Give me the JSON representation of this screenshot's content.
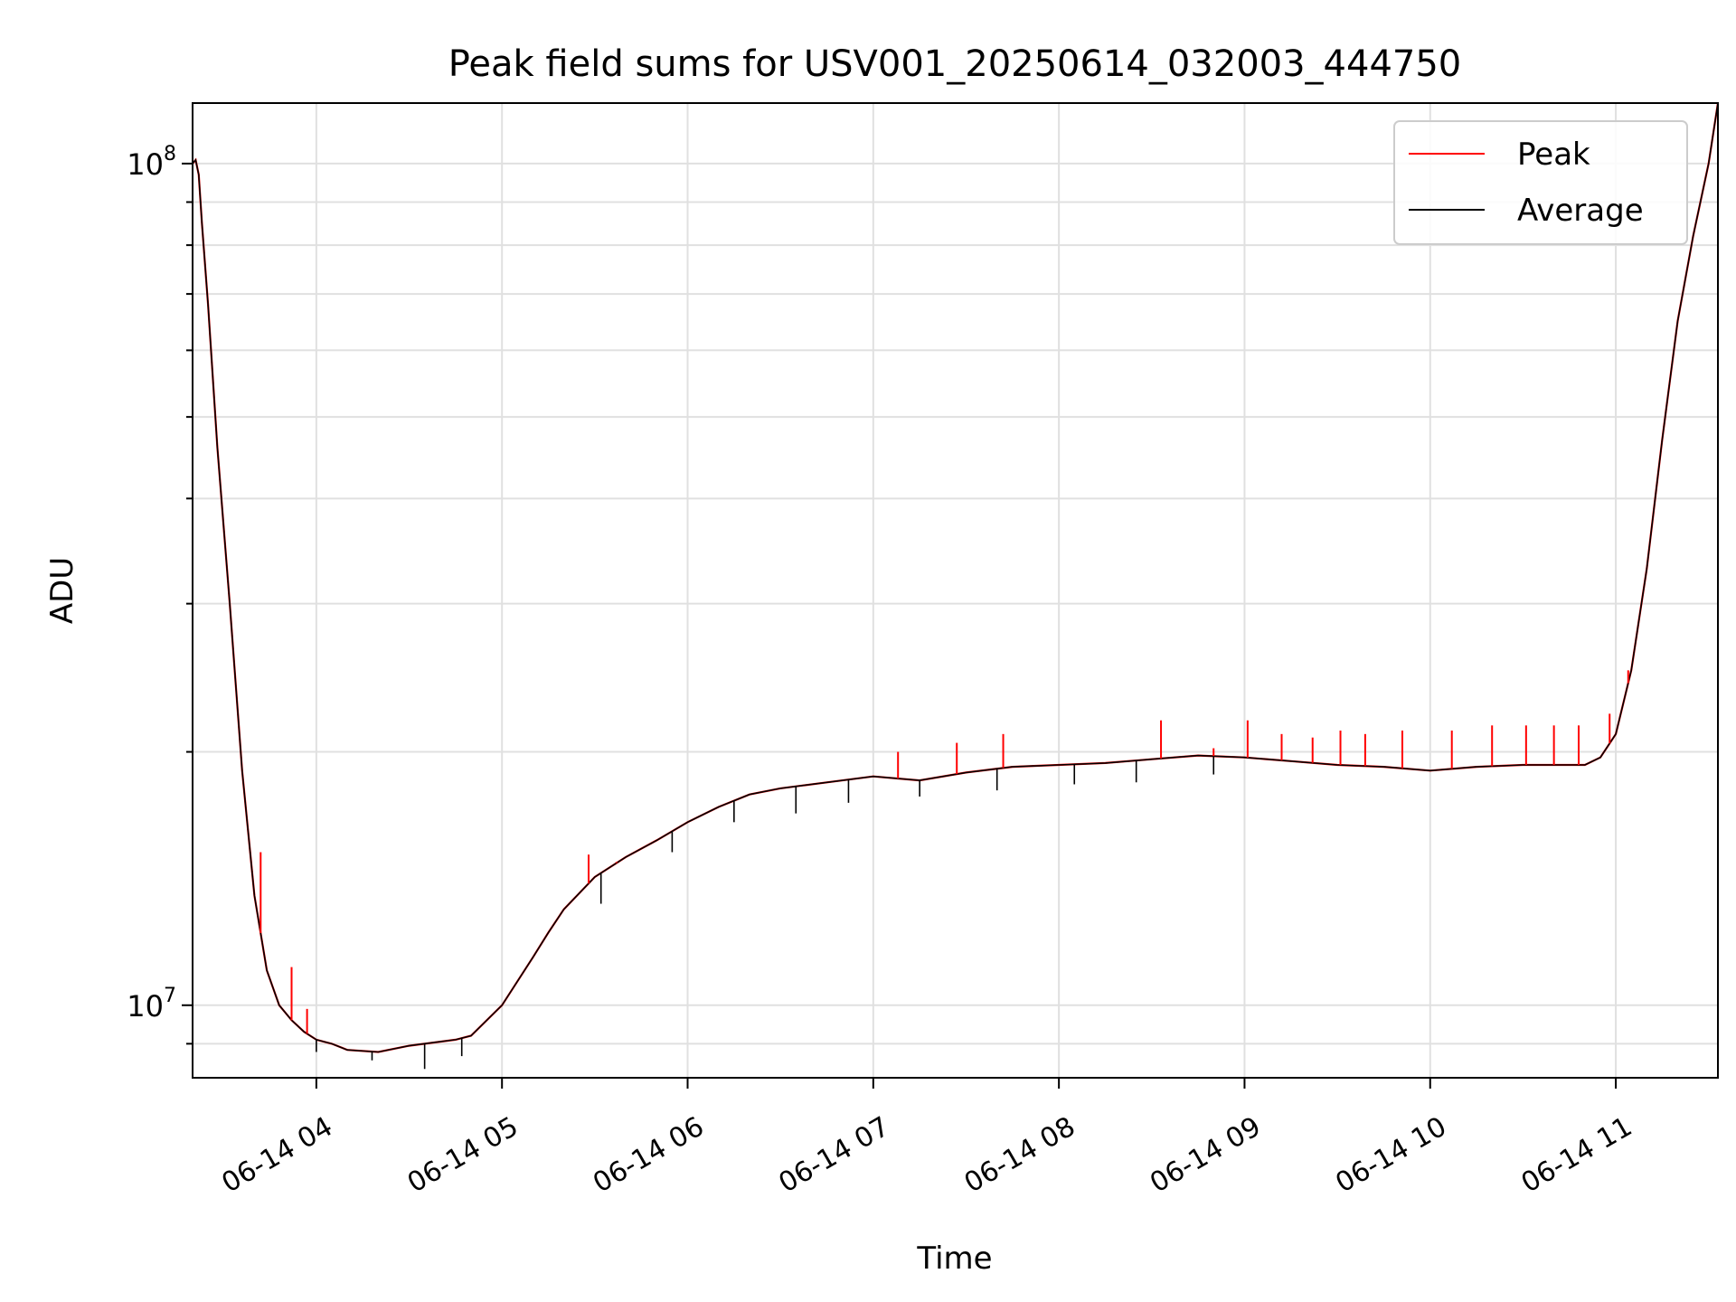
{
  "chart_data": {
    "type": "line",
    "title": "Peak field sums for USV001_20250614_032003_444750",
    "xlabel": "Time",
    "ylabel": "ADU",
    "x_axis": {
      "type": "time",
      "range": [
        "2025-06-14 03:20",
        "2025-06-14 11:33"
      ],
      "ticks": [
        {
          "t": "2025-06-14 04:00",
          "label": "06-14 04"
        },
        {
          "t": "2025-06-14 05:00",
          "label": "06-14 05"
        },
        {
          "t": "2025-06-14 06:00",
          "label": "06-14 06"
        },
        {
          "t": "2025-06-14 07:00",
          "label": "06-14 07"
        },
        {
          "t": "2025-06-14 08:00",
          "label": "06-14 08"
        },
        {
          "t": "2025-06-14 09:00",
          "label": "06-14 09"
        },
        {
          "t": "2025-06-14 10:00",
          "label": "06-14 10"
        },
        {
          "t": "2025-06-14 11:00",
          "label": "06-14 11"
        }
      ]
    },
    "y_axis": {
      "scale": "log",
      "range": [
        8200000,
        118000000
      ],
      "major_ticks": [
        {
          "value": 10000000,
          "base": "10",
          "exp": "7"
        },
        {
          "value": 100000000,
          "base": "10",
          "exp": "8"
        }
      ]
    },
    "grid": true,
    "legend": {
      "position": "top-right",
      "entries": [
        "Peak",
        "Average"
      ]
    },
    "series": [
      {
        "name": "Peak",
        "color": "#ff0000",
        "x": [
          "2025-06-14 03:20",
          "2025-06-14 03:21",
          "2025-06-14 03:22",
          "2025-06-14 03:23",
          "2025-06-14 03:25",
          "2025-06-14 03:28",
          "2025-06-14 03:32",
          "2025-06-14 03:36",
          "2025-06-14 03:40",
          "2025-06-14 03:44",
          "2025-06-14 03:48",
          "2025-06-14 03:52",
          "2025-06-14 03:56",
          "2025-06-14 04:00",
          "2025-06-14 04:05",
          "2025-06-14 04:10",
          "2025-06-14 04:20",
          "2025-06-14 04:30",
          "2025-06-14 04:40",
          "2025-06-14 04:45",
          "2025-06-14 04:50",
          "2025-06-14 05:00",
          "2025-06-14 05:10",
          "2025-06-14 05:15",
          "2025-06-14 05:20",
          "2025-06-14 05:30",
          "2025-06-14 05:40",
          "2025-06-14 05:50",
          "2025-06-14 06:00",
          "2025-06-14 06:10",
          "2025-06-14 06:20",
          "2025-06-14 06:30",
          "2025-06-14 06:45",
          "2025-06-14 07:00",
          "2025-06-14 07:15",
          "2025-06-14 07:30",
          "2025-06-14 07:45",
          "2025-06-14 08:00",
          "2025-06-14 08:15",
          "2025-06-14 08:30",
          "2025-06-14 08:45",
          "2025-06-14 09:00",
          "2025-06-14 09:15",
          "2025-06-14 09:30",
          "2025-06-14 09:45",
          "2025-06-14 10:00",
          "2025-06-14 10:15",
          "2025-06-14 10:30",
          "2025-06-14 10:45",
          "2025-06-14 10:50",
          "2025-06-14 10:55",
          "2025-06-14 11:00",
          "2025-06-14 11:05",
          "2025-06-14 11:10",
          "2025-06-14 11:15",
          "2025-06-14 11:20",
          "2025-06-14 11:25",
          "2025-06-14 11:30",
          "2025-06-14 11:33"
        ],
        "y": [
          100000000,
          101000000,
          97000000,
          85000000,
          68000000,
          46000000,
          30000000,
          19000000,
          13500000,
          11000000,
          10000000,
          9600000,
          9300000,
          9100000,
          9000000,
          8850000,
          8800000,
          8950000,
          9050000,
          9100000,
          9200000,
          10000000,
          11400000,
          12200000,
          13000000,
          14200000,
          15000000,
          15700000,
          16500000,
          17200000,
          17800000,
          18100000,
          18400000,
          18700000,
          18500000,
          18900000,
          19200000,
          19300000,
          19400000,
          19600000,
          19800000,
          19700000,
          19500000,
          19300000,
          19200000,
          19000000,
          19200000,
          19300000,
          19300000,
          19300000,
          19700000,
          21000000,
          25000000,
          33000000,
          47000000,
          65000000,
          82000000,
          100000000,
          118000000
        ],
        "spikes": [
          {
            "t": "2025-06-14 03:42",
            "value": 15200000
          },
          {
            "t": "2025-06-14 03:52",
            "value": 11100000
          },
          {
            "t": "2025-06-14 03:57",
            "value": 9900000
          },
          {
            "t": "2025-06-14 05:28",
            "value": 15100000
          },
          {
            "t": "2025-06-14 05:37",
            "value": 14800000
          },
          {
            "t": "2025-06-14 07:08",
            "value": 20000000
          },
          {
            "t": "2025-06-14 07:27",
            "value": 20500000
          },
          {
            "t": "2025-06-14 07:42",
            "value": 21000000
          },
          {
            "t": "2025-06-14 08:33",
            "value": 21800000
          },
          {
            "t": "2025-06-14 08:50",
            "value": 20200000
          },
          {
            "t": "2025-06-14 09:01",
            "value": 21800000
          },
          {
            "t": "2025-06-14 09:12",
            "value": 21000000
          },
          {
            "t": "2025-06-14 09:22",
            "value": 20800000
          },
          {
            "t": "2025-06-14 09:31",
            "value": 21200000
          },
          {
            "t": "2025-06-14 09:39",
            "value": 21000000
          },
          {
            "t": "2025-06-14 09:51",
            "value": 21200000
          },
          {
            "t": "2025-06-14 10:07",
            "value": 21200000
          },
          {
            "t": "2025-06-14 10:20",
            "value": 21500000
          },
          {
            "t": "2025-06-14 10:31",
            "value": 21500000
          },
          {
            "t": "2025-06-14 10:40",
            "value": 21500000
          },
          {
            "t": "2025-06-14 10:48",
            "value": 21500000
          },
          {
            "t": "2025-06-14 10:58",
            "value": 22200000
          },
          {
            "t": "2025-06-14 11:04",
            "value": 25000000
          }
        ]
      },
      {
        "name": "Average",
        "color": "#000000",
        "x": [
          "2025-06-14 03:20",
          "2025-06-14 03:21",
          "2025-06-14 03:22",
          "2025-06-14 03:23",
          "2025-06-14 03:25",
          "2025-06-14 03:28",
          "2025-06-14 03:32",
          "2025-06-14 03:36",
          "2025-06-14 03:40",
          "2025-06-14 03:44",
          "2025-06-14 03:48",
          "2025-06-14 03:52",
          "2025-06-14 03:56",
          "2025-06-14 04:00",
          "2025-06-14 04:05",
          "2025-06-14 04:10",
          "2025-06-14 04:20",
          "2025-06-14 04:30",
          "2025-06-14 04:40",
          "2025-06-14 04:45",
          "2025-06-14 04:50",
          "2025-06-14 05:00",
          "2025-06-14 05:10",
          "2025-06-14 05:15",
          "2025-06-14 05:20",
          "2025-06-14 05:30",
          "2025-06-14 05:40",
          "2025-06-14 05:50",
          "2025-06-14 06:00",
          "2025-06-14 06:10",
          "2025-06-14 06:20",
          "2025-06-14 06:30",
          "2025-06-14 06:45",
          "2025-06-14 07:00",
          "2025-06-14 07:15",
          "2025-06-14 07:30",
          "2025-06-14 07:45",
          "2025-06-14 08:00",
          "2025-06-14 08:15",
          "2025-06-14 08:30",
          "2025-06-14 08:45",
          "2025-06-14 09:00",
          "2025-06-14 09:15",
          "2025-06-14 09:30",
          "2025-06-14 09:45",
          "2025-06-14 10:00",
          "2025-06-14 10:15",
          "2025-06-14 10:30",
          "2025-06-14 10:45",
          "2025-06-14 10:50",
          "2025-06-14 10:55",
          "2025-06-14 11:00",
          "2025-06-14 11:05",
          "2025-06-14 11:10",
          "2025-06-14 11:15",
          "2025-06-14 11:20",
          "2025-06-14 11:25",
          "2025-06-14 11:30",
          "2025-06-14 11:33"
        ],
        "y": [
          100000000,
          101000000,
          97000000,
          85000000,
          68000000,
          46000000,
          30000000,
          19000000,
          13500000,
          11000000,
          10000000,
          9600000,
          9300000,
          9100000,
          9000000,
          8850000,
          8800000,
          8950000,
          9050000,
          9100000,
          9200000,
          10000000,
          11400000,
          12200000,
          13000000,
          14200000,
          15000000,
          15700000,
          16500000,
          17200000,
          17800000,
          18100000,
          18400000,
          18700000,
          18500000,
          18900000,
          19200000,
          19300000,
          19400000,
          19600000,
          19800000,
          19700000,
          19500000,
          19300000,
          19200000,
          19000000,
          19200000,
          19300000,
          19300000,
          19300000,
          19700000,
          21000000,
          25000000,
          33000000,
          47000000,
          65000000,
          82000000,
          100000000,
          118000000
        ],
        "dips": [
          {
            "t": "2025-06-14 04:00",
            "value": 8800000
          },
          {
            "t": "2025-06-14 04:18",
            "value": 8600000
          },
          {
            "t": "2025-06-14 04:35",
            "value": 8400000
          },
          {
            "t": "2025-06-14 04:47",
            "value": 8700000
          },
          {
            "t": "2025-06-14 05:32",
            "value": 13200000
          },
          {
            "t": "2025-06-14 05:55",
            "value": 15200000
          },
          {
            "t": "2025-06-14 06:15",
            "value": 16500000
          },
          {
            "t": "2025-06-14 06:35",
            "value": 16900000
          },
          {
            "t": "2025-06-14 06:52",
            "value": 17400000
          },
          {
            "t": "2025-06-14 07:15",
            "value": 17700000
          },
          {
            "t": "2025-06-14 07:40",
            "value": 18000000
          },
          {
            "t": "2025-06-14 08:05",
            "value": 18300000
          },
          {
            "t": "2025-06-14 08:25",
            "value": 18400000
          },
          {
            "t": "2025-06-14 08:50",
            "value": 18800000
          }
        ]
      }
    ]
  }
}
